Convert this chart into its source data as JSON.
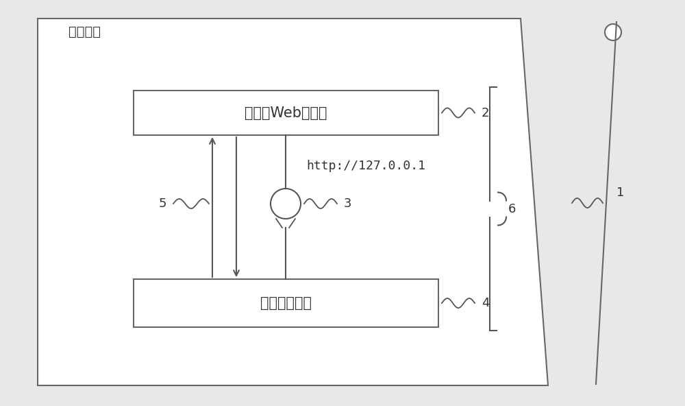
{
  "bg_color": "#e8e8e8",
  "inner_bg_color": "#f5f5f5",
  "white_box_color": "#ffffff",
  "border_color": "#666666",
  "title_text": "方案中心",
  "web_server_text": "嵌入式Web服务器",
  "browser_text": "嵌入式浏览器",
  "http_text": "http://127.0.0.1",
  "label1": "1",
  "label2": "2",
  "label3": "3",
  "label4": "4",
  "label5": "5",
  "label6": "6",
  "line_color": "#555555",
  "arrow_color": "#555555",
  "text_color": "#333333"
}
